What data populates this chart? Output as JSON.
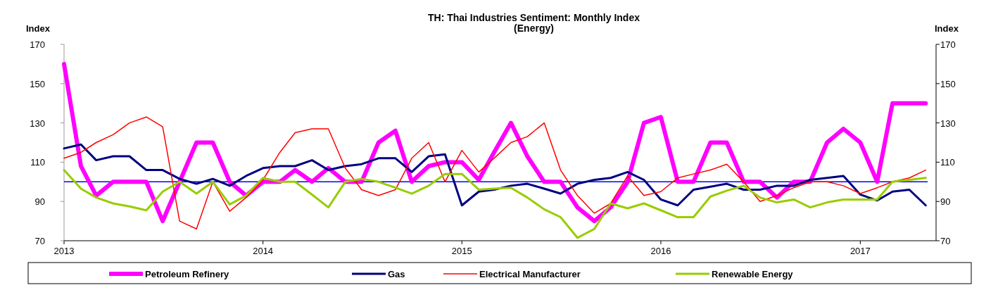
{
  "chart_data": {
    "type": "line",
    "title": "TH: Thai Industries Sentiment: Monthly Index",
    "subtitle": "(Energy)",
    "ylabel": "Index",
    "y2label": "Index",
    "x": [
      "2013-01",
      "2013-02",
      "2013-03",
      "2013-04",
      "2013-05",
      "2013-06",
      "2013-07",
      "2013-08",
      "2013-09",
      "2013-10",
      "2013-11",
      "2013-12",
      "2014-01",
      "2014-02",
      "2014-03",
      "2014-04",
      "2014-05",
      "2014-06",
      "2014-07",
      "2014-08",
      "2014-09",
      "2014-10",
      "2014-11",
      "2014-12",
      "2015-01",
      "2015-02",
      "2015-03",
      "2015-04",
      "2015-05",
      "2015-06",
      "2015-07",
      "2015-08",
      "2015-09",
      "2015-10",
      "2015-11",
      "2015-12",
      "2016-01",
      "2016-02",
      "2016-03",
      "2016-04",
      "2016-05",
      "2016-06",
      "2016-07",
      "2016-08",
      "2016-09",
      "2016-10",
      "2016-11",
      "2016-12",
      "2017-01",
      "2017-02",
      "2017-03",
      "2017-04",
      "2017-05"
    ],
    "xlim": [
      "2013-01-01",
      "2017-05-20"
    ],
    "xticks": [
      {
        "value": "2013-01-01",
        "label": "2013"
      },
      {
        "value": "2014-01-01",
        "label": "2014"
      },
      {
        "value": "2015-01-01",
        "label": "2015"
      },
      {
        "value": "2016-01-01",
        "label": "2016"
      },
      {
        "value": "2017-01-01",
        "label": "2017"
      }
    ],
    "ylim": [
      70,
      170
    ],
    "yticks": [
      70,
      90,
      110,
      130,
      150,
      170
    ],
    "y2lim": [
      70,
      170
    ],
    "y2ticks": [
      70,
      90,
      110,
      130,
      150,
      170
    ],
    "series": [
      {
        "name": "Petroleum Refinery",
        "color": "#ff00ff",
        "values": [
          160,
          108,
          93,
          100,
          100,
          100,
          80,
          100,
          120,
          120,
          100,
          93,
          100,
          100,
          106,
          100,
          107,
          100,
          100,
          120,
          126,
          100,
          108,
          110,
          110,
          101,
          115,
          130,
          113,
          100,
          100,
          87,
          80,
          87,
          100,
          130,
          133,
          100,
          100,
          120,
          120,
          100,
          100,
          92,
          100,
          100,
          120,
          127,
          120,
          100,
          140,
          140,
          140
        ]
      },
      {
        "name": "Gas",
        "color": "#000080",
        "values": [
          117,
          119,
          111,
          113,
          113,
          106,
          106,
          101.5,
          99,
          101.5,
          98,
          103,
          107,
          108,
          108,
          111,
          106,
          108,
          109,
          112,
          112,
          105,
          113,
          114,
          88,
          95,
          96,
          98,
          99,
          96.5,
          94,
          99,
          101,
          102,
          105,
          101,
          91,
          88,
          96,
          97.5,
          99,
          96,
          96,
          98,
          98,
          101,
          102,
          103,
          93.5,
          90.5,
          95,
          96,
          88
        ]
      },
      {
        "name": "Electrical Manufacturer",
        "color": "#ff0000",
        "values": [
          112,
          115,
          120,
          124,
          130,
          133,
          128,
          80,
          76,
          100,
          85,
          92,
          101,
          115,
          125,
          127,
          127,
          107,
          96,
          93,
          96,
          112,
          120,
          100,
          116,
          105,
          112,
          120,
          123,
          130,
          106,
          93,
          84,
          89,
          103,
          93,
          95,
          102,
          104,
          106,
          109,
          100,
          90,
          93,
          97,
          100,
          100,
          98,
          94,
          97,
          100,
          102,
          106
        ]
      },
      {
        "name": "Renewable Energy",
        "color": "#99cc00",
        "values": [
          106,
          96.5,
          92,
          89,
          87.5,
          85.5,
          95,
          100,
          94,
          100,
          88.5,
          93,
          102,
          100,
          100,
          93.5,
          87,
          100,
          101.5,
          100,
          97,
          94,
          98,
          104,
          104,
          96,
          96.5,
          97,
          92,
          86,
          82,
          71.5,
          76,
          89,
          86.5,
          89,
          85.5,
          82,
          82,
          92.5,
          95.5,
          98,
          92,
          89.5,
          91,
          87,
          89.5,
          91,
          91,
          91,
          100,
          101,
          102
        ]
      }
    ],
    "ref_lines": [
      {
        "axis": "y",
        "value": 100,
        "color": "#0000ff"
      }
    ],
    "legend": "bottom",
    "grid": false
  }
}
